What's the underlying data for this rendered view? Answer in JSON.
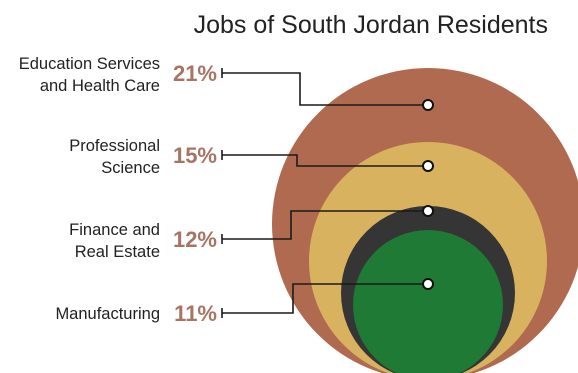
{
  "chart_data": {
    "type": "bubble",
    "title": "Jobs of South Jordan Residents",
    "series": [
      {
        "label_lines": [
          "Education Services",
          "and Health Care"
        ],
        "value": 21,
        "value_text": "21%",
        "color": "#b06a4f"
      },
      {
        "label_lines": [
          "Professional",
          "Science"
        ],
        "value": 15,
        "value_text": "15%",
        "color": "#d9b25f"
      },
      {
        "label_lines": [
          "Finance and",
          "Real Estate"
        ],
        "value": 12,
        "value_text": "12%",
        "color": "#353535"
      },
      {
        "label_lines": [
          "Manufacturing"
        ],
        "value": 11,
        "value_text": "11%",
        "color": "#1e7a35"
      }
    ],
    "value_label_color": "#a87462",
    "leader_line_color": "#1a1a1a"
  }
}
